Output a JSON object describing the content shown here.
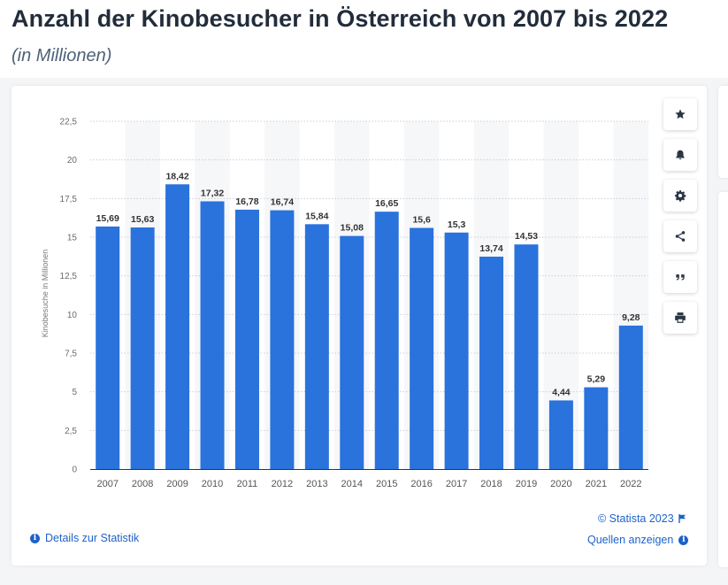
{
  "header": {
    "title": "Anzahl der Kinobesucher in Österreich von 2007 bis 2022",
    "subtitle": "(in Millionen)"
  },
  "toolbar": {
    "buttons": [
      {
        "icon": "star-icon"
      },
      {
        "icon": "bell-icon"
      },
      {
        "icon": "gear-icon"
      },
      {
        "icon": "share-icon"
      },
      {
        "icon": "quote-icon"
      },
      {
        "icon": "print-icon"
      }
    ]
  },
  "footer": {
    "copyright": "© Statista 2023",
    "details_link": "Details zur Statistik",
    "sources_link": "Quellen anzeigen"
  },
  "colors": {
    "bar": "#2a72dc",
    "accent": "#1e62c8",
    "stripe": "#f6f7f9"
  },
  "chart_data": {
    "type": "bar",
    "title": "",
    "xlabel": "",
    "ylabel": "Kinobesuche in Millionen",
    "ylim": [
      0,
      22.5
    ],
    "yticks": [
      0,
      2.5,
      5,
      7.5,
      10,
      12.5,
      15,
      17.5,
      20,
      22.5
    ],
    "ytick_labels": [
      "0",
      "2,5",
      "5",
      "7,5",
      "10",
      "12,5",
      "15",
      "17,5",
      "20",
      "22,5"
    ],
    "categories": [
      "2007",
      "2008",
      "2009",
      "2010",
      "2011",
      "2012",
      "2013",
      "2014",
      "2015",
      "2016",
      "2017",
      "2018",
      "2019",
      "2020",
      "2021",
      "2022"
    ],
    "values": [
      15.69,
      15.63,
      18.42,
      17.32,
      16.78,
      16.74,
      15.84,
      15.08,
      16.65,
      15.6,
      15.3,
      13.74,
      14.53,
      4.44,
      5.29,
      9.28
    ],
    "value_labels": [
      "15,69",
      "15,63",
      "18,42",
      "17,32",
      "16,78",
      "16,74",
      "15,84",
      "15,08",
      "16,65",
      "15,6",
      "15,3",
      "13,74",
      "14,53",
      "4,44",
      "5,29",
      "9,28"
    ],
    "grid": true,
    "legend": "none"
  }
}
